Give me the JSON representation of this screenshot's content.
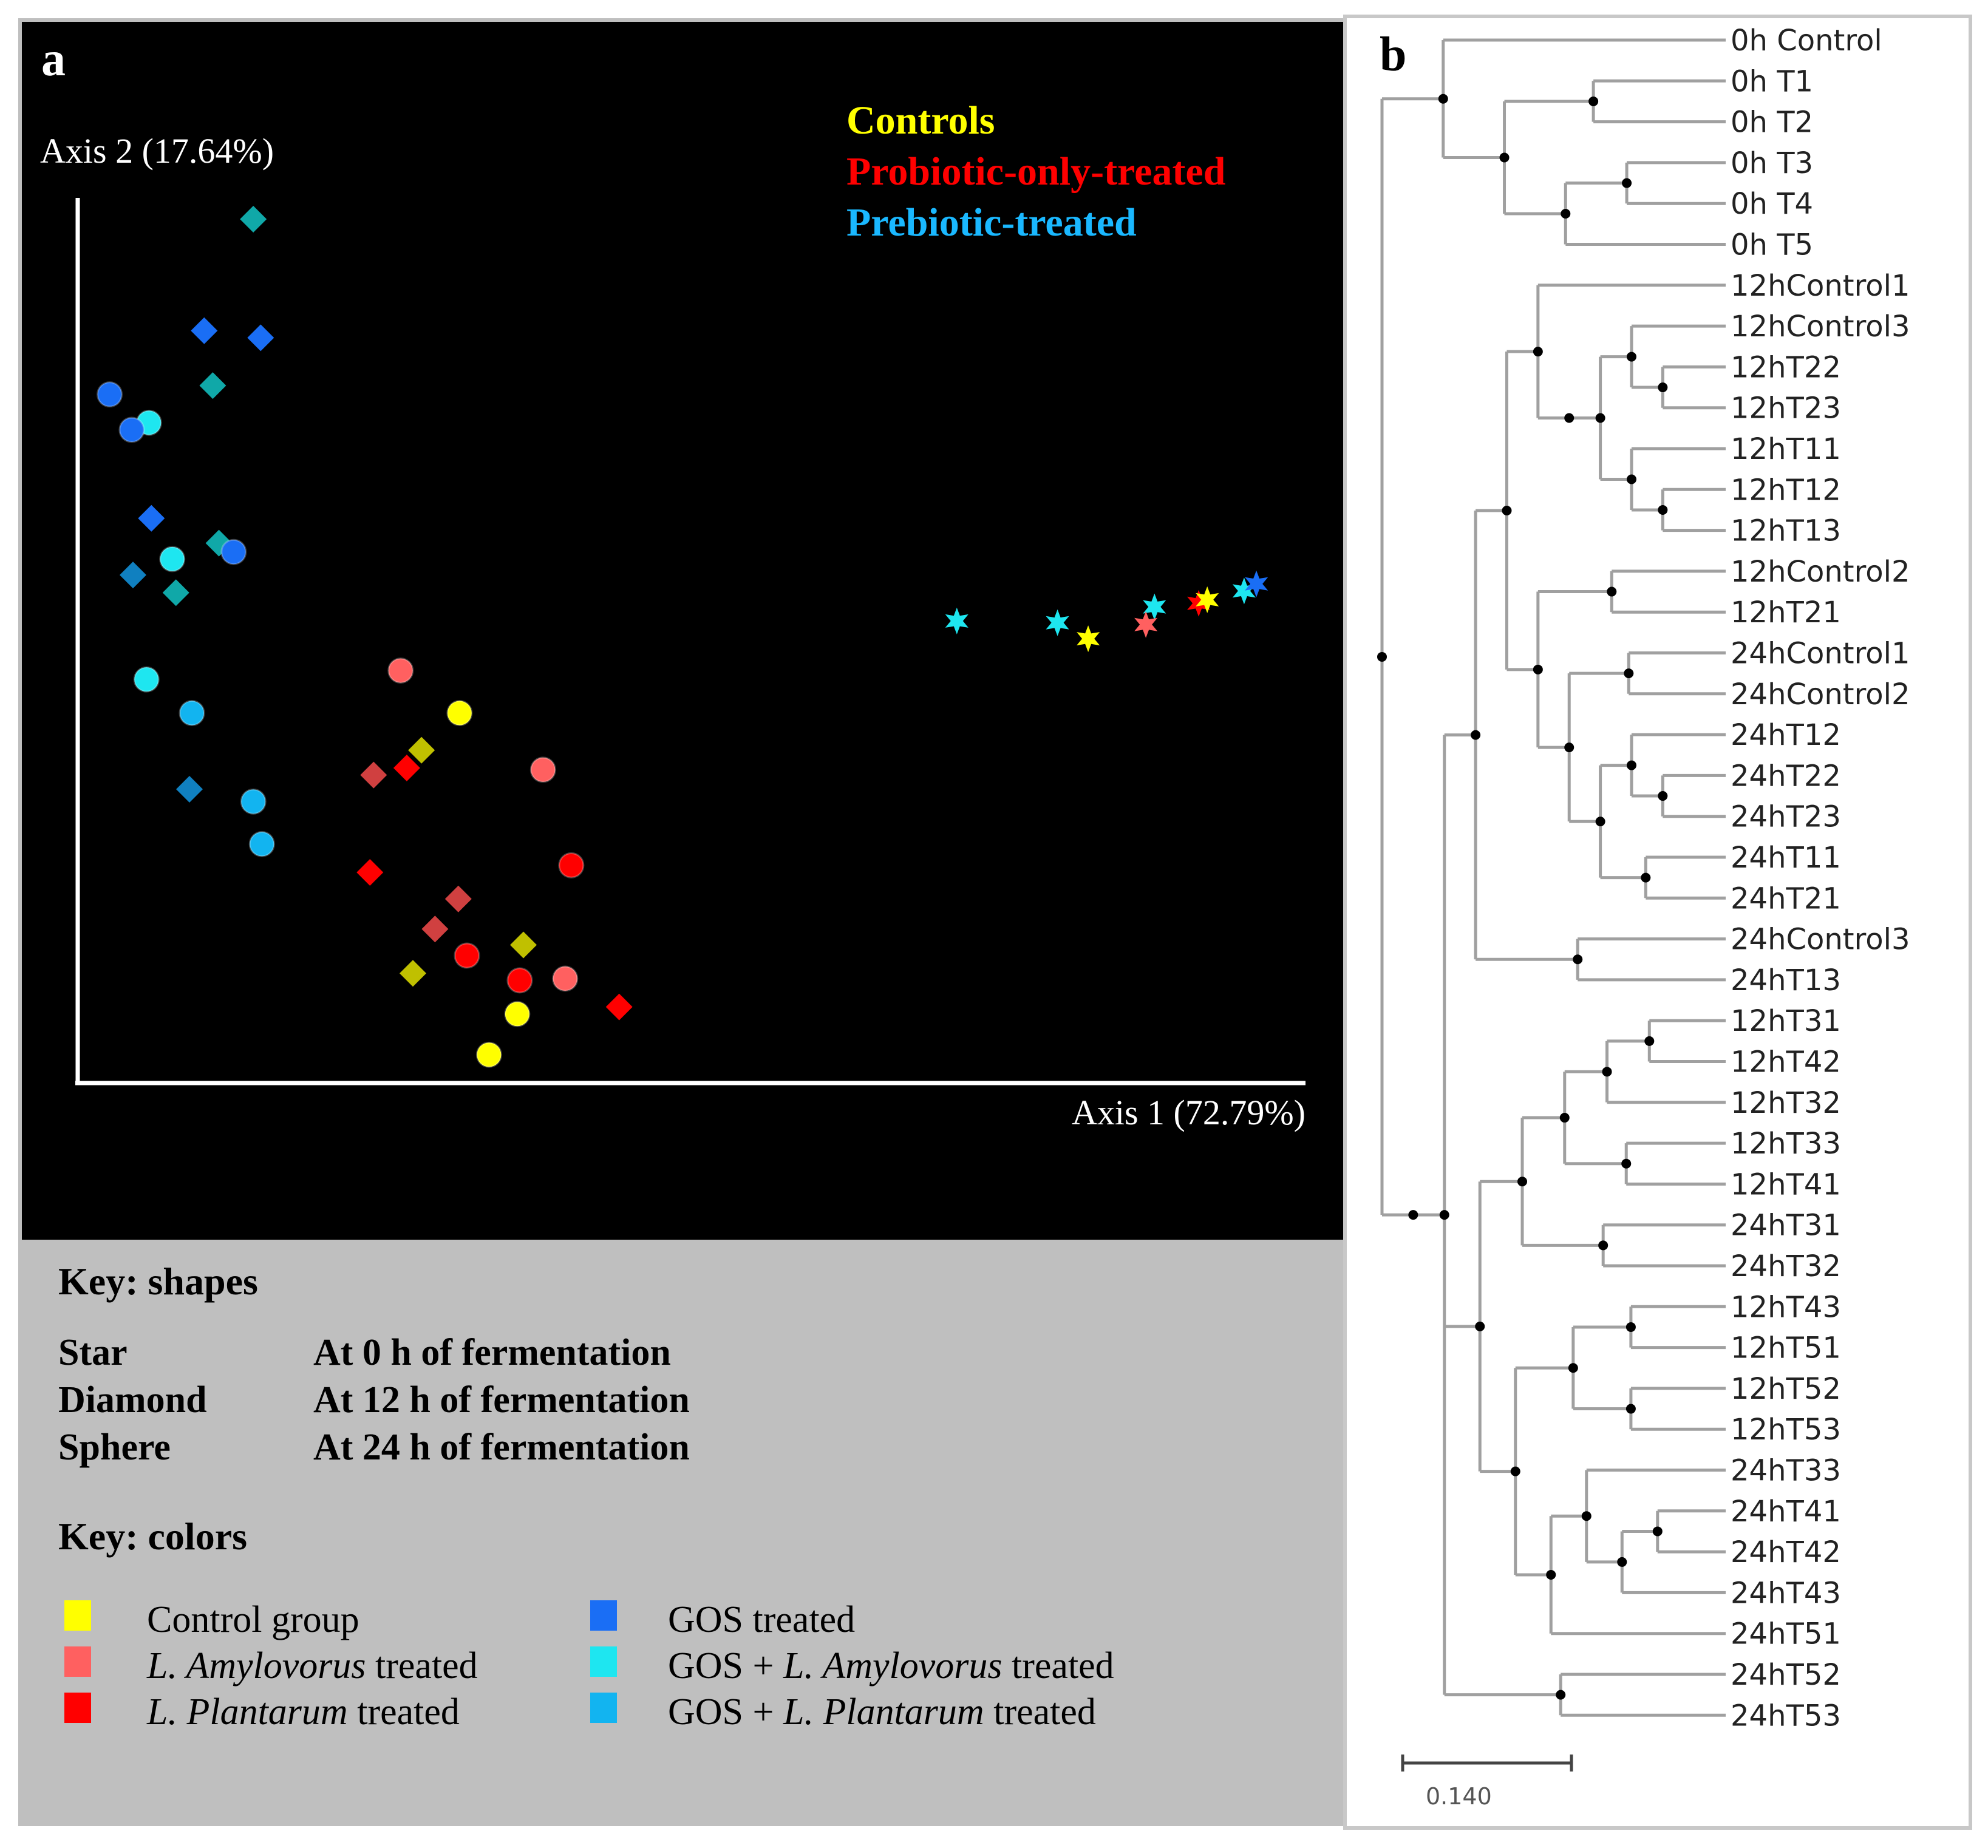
{
  "panel_a": {
    "label": "a",
    "legend_top": [
      {
        "text": "Controls",
        "color": "#ffff00"
      },
      {
        "text": "Probiotic-only-treated",
        "color": "#ff0000"
      },
      {
        "text": "Prebiotic-treated",
        "color": "#1ab8ff"
      }
    ],
    "key_shapes": {
      "title": "Key: shapes",
      "rows": [
        {
          "shape": "Star",
          "desc": "At 0 h of fermentation"
        },
        {
          "shape": "Diamond",
          "desc": "At 12 h of fermentation"
        },
        {
          "shape": "Sphere",
          "desc": "At 24 h of fermentation"
        }
      ]
    },
    "key_colors": {
      "title": "Key: colors",
      "items": [
        {
          "color": "#ffff00",
          "italic": "",
          "text": "Control group"
        },
        {
          "color": "#ff6060",
          "italic": "L. Amylovorus",
          "text": " treated"
        },
        {
          "color": "#ff0000",
          "italic": "L. Plantarum",
          "text": " treated"
        },
        {
          "color": "#1a6ef5",
          "prefix": "GOS",
          "italic": "",
          "text": " treated"
        },
        {
          "color": "#1ee6f0",
          "prefix": "GOS + ",
          "italic": "L. Amylovorus",
          "text": " treated"
        },
        {
          "color": "#12b4f0",
          "prefix": "GOS + ",
          "italic": "L. Plantarum",
          "text": " treated"
        }
      ]
    }
  },
  "panel_b": {
    "label": "b",
    "scale_label": "0.140",
    "leaves": [
      "0h Control",
      "0h T1",
      "0h T2",
      "0h T3",
      "0h T4",
      "0h T5",
      "12hControl1",
      "12hControl3",
      "12hT22",
      "12hT23",
      "12hT11",
      "12hT12",
      "12hT13",
      "12hControl2",
      "12hT21",
      "24hControl1",
      "24hControl2",
      "24hT12",
      "24hT22",
      "24hT23",
      "24hT11",
      "24hT21",
      "24hControl3",
      "24hT13",
      "12hT31",
      "12hT42",
      "12hT32",
      "12hT33",
      "12hT41",
      "24hT31",
      "24hT32",
      "12hT43",
      "12hT51",
      "12hT52",
      "12hT53",
      "24hT33",
      "24hT41",
      "24hT42",
      "24hT43",
      "24hT51",
      "24hT52",
      "24hT53"
    ]
  },
  "chart_data": [
    {
      "type": "scatter",
      "title": "",
      "xlabel": "Axis 1 (72.79%)",
      "ylabel": "Axis 2 (17.64%)",
      "xlim": [
        0,
        100
      ],
      "ylim": [
        0,
        100
      ],
      "grid": false,
      "legend": "top-right",
      "points": [
        {
          "x": 14.3,
          "y": 97.6,
          "shape": "diamond",
          "color": "#10a8a8"
        },
        {
          "x": 10.3,
          "y": 85.0,
          "shape": "diamond",
          "color": "#1a6ef5"
        },
        {
          "x": 14.9,
          "y": 84.2,
          "shape": "diamond",
          "color": "#1a6ef5"
        },
        {
          "x": 11.0,
          "y": 78.8,
          "shape": "diamond",
          "color": "#10a8a8"
        },
        {
          "x": 2.6,
          "y": 77.8,
          "shape": "sphere",
          "color": "#1a6ef5"
        },
        {
          "x": 5.8,
          "y": 74.6,
          "shape": "sphere",
          "color": "#1ee6f0"
        },
        {
          "x": 4.4,
          "y": 73.8,
          "shape": "sphere",
          "color": "#1a6ef5"
        },
        {
          "x": 6.0,
          "y": 63.8,
          "shape": "diamond",
          "color": "#1a6ef5"
        },
        {
          "x": 11.5,
          "y": 61.0,
          "shape": "diamond",
          "color": "#10a8a8"
        },
        {
          "x": 12.7,
          "y": 60.0,
          "shape": "sphere",
          "color": "#1a6ef5"
        },
        {
          "x": 7.7,
          "y": 59.2,
          "shape": "sphere",
          "color": "#1ee6f0"
        },
        {
          "x": 4.5,
          "y": 57.4,
          "shape": "diamond",
          "color": "#1080c0"
        },
        {
          "x": 8.0,
          "y": 55.4,
          "shape": "diamond",
          "color": "#10a8a8"
        },
        {
          "x": 5.6,
          "y": 45.6,
          "shape": "sphere",
          "color": "#1ee6f0"
        },
        {
          "x": 9.3,
          "y": 41.8,
          "shape": "sphere",
          "color": "#12b4f0"
        },
        {
          "x": 9.1,
          "y": 33.2,
          "shape": "diamond",
          "color": "#1080c0"
        },
        {
          "x": 14.3,
          "y": 31.8,
          "shape": "sphere",
          "color": "#12b4f0"
        },
        {
          "x": 15.0,
          "y": 27.0,
          "shape": "sphere",
          "color": "#12b4f0"
        },
        {
          "x": 26.3,
          "y": 46.6,
          "shape": "sphere",
          "color": "#ff6060"
        },
        {
          "x": 31.1,
          "y": 41.8,
          "shape": "sphere",
          "color": "#ffff00"
        },
        {
          "x": 28.0,
          "y": 37.6,
          "shape": "diamond",
          "color": "#c0c000"
        },
        {
          "x": 26.8,
          "y": 35.6,
          "shape": "diamond",
          "color": "#ff0000"
        },
        {
          "x": 24.1,
          "y": 34.8,
          "shape": "diamond",
          "color": "#d04040"
        },
        {
          "x": 37.9,
          "y": 35.4,
          "shape": "sphere",
          "color": "#ff6060"
        },
        {
          "x": 40.2,
          "y": 24.6,
          "shape": "sphere",
          "color": "#ff0000"
        },
        {
          "x": 23.8,
          "y": 23.8,
          "shape": "diamond",
          "color": "#ff0000"
        },
        {
          "x": 31.0,
          "y": 20.8,
          "shape": "diamond",
          "color": "#d04040"
        },
        {
          "x": 29.1,
          "y": 17.4,
          "shape": "diamond",
          "color": "#d04040"
        },
        {
          "x": 36.3,
          "y": 15.6,
          "shape": "diamond",
          "color": "#c0c000"
        },
        {
          "x": 31.7,
          "y": 14.4,
          "shape": "sphere",
          "color": "#ff0000"
        },
        {
          "x": 27.3,
          "y": 12.4,
          "shape": "diamond",
          "color": "#c0c000"
        },
        {
          "x": 36.0,
          "y": 11.6,
          "shape": "sphere",
          "color": "#ff0000"
        },
        {
          "x": 39.7,
          "y": 11.8,
          "shape": "sphere",
          "color": "#ff6060"
        },
        {
          "x": 44.1,
          "y": 8.6,
          "shape": "diamond",
          "color": "#ff0000"
        },
        {
          "x": 35.8,
          "y": 7.8,
          "shape": "sphere",
          "color": "#ffff00"
        },
        {
          "x": 33.5,
          "y": 3.2,
          "shape": "sphere",
          "color": "#ffff00"
        },
        {
          "x": 71.6,
          "y": 52.2,
          "shape": "star",
          "color": "#1ee6f0"
        },
        {
          "x": 79.8,
          "y": 52.0,
          "shape": "star",
          "color": "#1ee6f0"
        },
        {
          "x": 82.3,
          "y": 50.2,
          "shape": "star",
          "color": "#ffff00"
        },
        {
          "x": 87.7,
          "y": 53.8,
          "shape": "star",
          "color": "#1ee6f0"
        },
        {
          "x": 87.0,
          "y": 51.8,
          "shape": "star",
          "color": "#ff6060"
        },
        {
          "x": 91.3,
          "y": 54.2,
          "shape": "star",
          "color": "#ff0000"
        },
        {
          "x": 92.0,
          "y": 54.6,
          "shape": "star",
          "color": "#ffff00"
        },
        {
          "x": 95.0,
          "y": 55.6,
          "shape": "star",
          "color": "#1ee6f0"
        },
        {
          "x": 96.0,
          "y": 56.4,
          "shape": "star",
          "color": "#1a6ef5"
        }
      ]
    },
    {
      "type": "dendrogram",
      "title": "",
      "scale_bar": 0.14,
      "scale_label": "0.140",
      "newick_like": "((0h Control,((0h T1,0h T2),((0h T3,0h T4),0h T5))),(((((12hControl1,(((12hControl3,(12hT22,12hT23)),(12hT11,(12hT12,12hT13))))),((12hControl2,12hT21),((24hControl1,24hControl2),((24hT12,(24hT22,24hT23)),(24hT11,24hT21))))),(24hControl3,24hT13)),(((((12hT31,12hT42),12hT32),(12hT33,12hT41)),(24hT31,24hT32)),(((12hT43,12hT51),(12hT52,12hT53)),((24hT33,((24hT41,24hT42),24hT43)),24hT51))),(24hT52,24hT53)))))",
      "leaves": [
        "0h Control",
        "0h T1",
        "0h T2",
        "0h T3",
        "0h T4",
        "0h T5",
        "12hControl1",
        "12hControl3",
        "12hT22",
        "12hT23",
        "12hT11",
        "12hT12",
        "12hT13",
        "12hControl2",
        "12hT21",
        "24hControl1",
        "24hControl2",
        "24hT12",
        "24hT22",
        "24hT23",
        "24hT11",
        "24hT21",
        "24hControl3",
        "24hT13",
        "12hT31",
        "12hT42",
        "12hT32",
        "12hT33",
        "12hT41",
        "24hT31",
        "24hT32",
        "12hT43",
        "12hT51",
        "12hT52",
        "12hT53",
        "24hT33",
        "24hT41",
        "24hT42",
        "24hT43",
        "24hT51",
        "24hT52",
        "24hT53"
      ]
    }
  ]
}
